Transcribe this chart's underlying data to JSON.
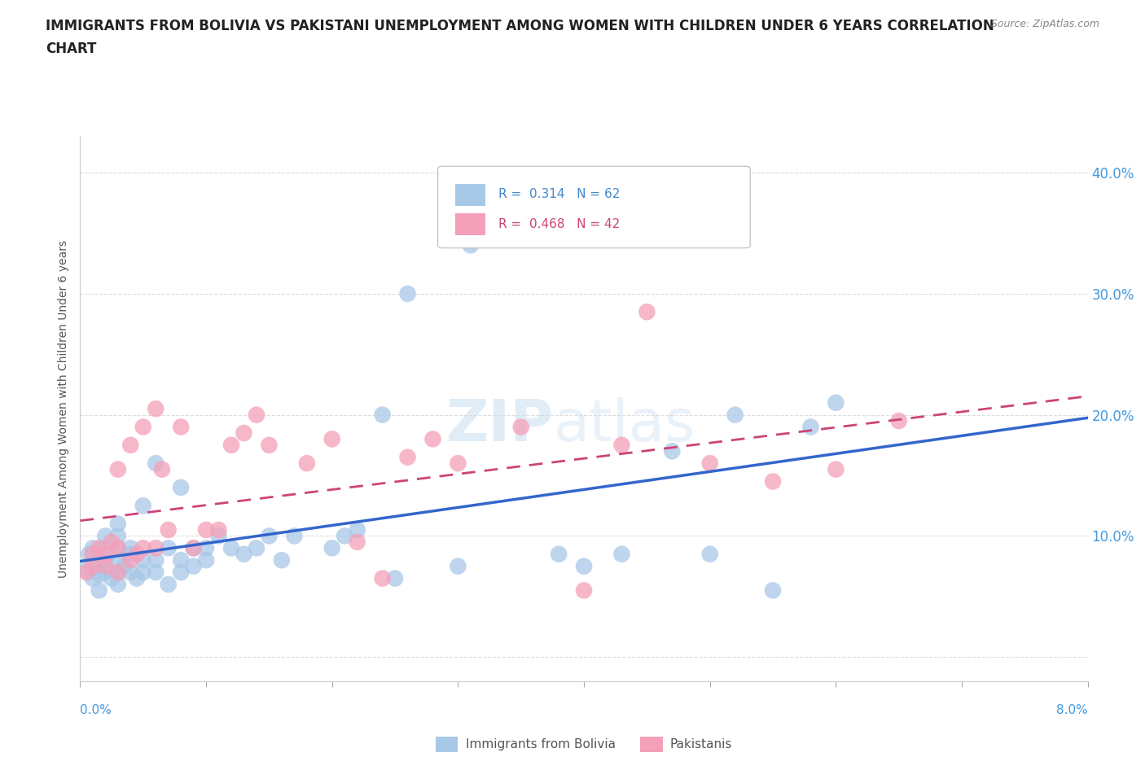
{
  "title_line1": "IMMIGRANTS FROM BOLIVIA VS PAKISTANI UNEMPLOYMENT AMONG WOMEN WITH CHILDREN UNDER 6 YEARS CORRELATION",
  "title_line2": "CHART",
  "source_text": "Source: ZipAtlas.com",
  "ylabel_label": "Unemployment Among Women with Children Under 6 years",
  "xlim": [
    0.0,
    0.08
  ],
  "ylim": [
    -0.02,
    0.43
  ],
  "yticks": [
    0.0,
    0.1,
    0.2,
    0.3,
    0.4
  ],
  "ytick_labels": [
    "",
    "10.0%",
    "20.0%",
    "30.0%",
    "40.0%"
  ],
  "legend_label1": "Immigrants from Bolivia",
  "legend_label2": "Pakistanis",
  "color_bolivia": "#a8c8e8",
  "color_pakistan": "#f4a0b8",
  "color_line_bolivia": "#3366cc",
  "color_line_pakistan": "#cc4477",
  "watermark_color": "#ddeeff",
  "bolivia_x": [
    0.0005,
    0.0007,
    0.001,
    0.001,
    0.0012,
    0.0015,
    0.0015,
    0.002,
    0.002,
    0.002,
    0.002,
    0.0025,
    0.003,
    0.003,
    0.003,
    0.003,
    0.003,
    0.003,
    0.0035,
    0.004,
    0.004,
    0.004,
    0.0045,
    0.005,
    0.005,
    0.005,
    0.006,
    0.006,
    0.006,
    0.007,
    0.007,
    0.008,
    0.008,
    0.008,
    0.009,
    0.009,
    0.01,
    0.01,
    0.011,
    0.012,
    0.013,
    0.014,
    0.015,
    0.016,
    0.017,
    0.02,
    0.021,
    0.022,
    0.024,
    0.025,
    0.026,
    0.03,
    0.031,
    0.038,
    0.04,
    0.043,
    0.047,
    0.05,
    0.052,
    0.055,
    0.058,
    0.06
  ],
  "bolivia_y": [
    0.072,
    0.085,
    0.065,
    0.09,
    0.075,
    0.068,
    0.055,
    0.07,
    0.08,
    0.09,
    0.1,
    0.065,
    0.06,
    0.07,
    0.08,
    0.09,
    0.1,
    0.11,
    0.075,
    0.07,
    0.085,
    0.09,
    0.065,
    0.07,
    0.08,
    0.125,
    0.07,
    0.08,
    0.16,
    0.06,
    0.09,
    0.07,
    0.08,
    0.14,
    0.075,
    0.09,
    0.08,
    0.09,
    0.1,
    0.09,
    0.085,
    0.09,
    0.1,
    0.08,
    0.1,
    0.09,
    0.1,
    0.105,
    0.2,
    0.065,
    0.3,
    0.075,
    0.34,
    0.085,
    0.075,
    0.085,
    0.17,
    0.085,
    0.2,
    0.055,
    0.19,
    0.21
  ],
  "pakistan_x": [
    0.0005,
    0.001,
    0.001,
    0.0015,
    0.002,
    0.002,
    0.0025,
    0.003,
    0.003,
    0.003,
    0.004,
    0.004,
    0.0045,
    0.005,
    0.005,
    0.006,
    0.006,
    0.0065,
    0.007,
    0.008,
    0.009,
    0.01,
    0.011,
    0.012,
    0.013,
    0.014,
    0.015,
    0.018,
    0.02,
    0.022,
    0.024,
    0.026,
    0.028,
    0.03,
    0.035,
    0.04,
    0.043,
    0.045,
    0.05,
    0.055,
    0.06,
    0.065
  ],
  "pakistan_y": [
    0.07,
    0.075,
    0.085,
    0.09,
    0.075,
    0.085,
    0.095,
    0.07,
    0.09,
    0.155,
    0.08,
    0.175,
    0.085,
    0.09,
    0.19,
    0.09,
    0.205,
    0.155,
    0.105,
    0.19,
    0.09,
    0.105,
    0.105,
    0.175,
    0.185,
    0.2,
    0.175,
    0.16,
    0.18,
    0.095,
    0.065,
    0.165,
    0.18,
    0.16,
    0.19,
    0.055,
    0.175,
    0.285,
    0.16,
    0.145,
    0.155,
    0.195
  ]
}
